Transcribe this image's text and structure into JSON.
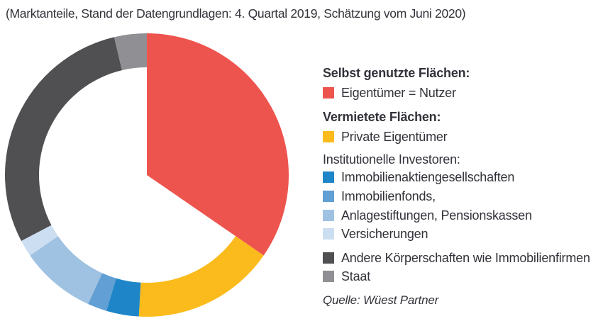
{
  "title": "(Marktanteile, Stand der Datengrundlagen: 4. Quartal 2019, Schätzung vom Juni 2020)",
  "source": "Quelle: Wüest Partner",
  "colors": {
    "owner_red": "#EE544E",
    "private_yellow": "#FBBB1C",
    "stock_blue": "#1E86C8",
    "fund_blue": "#619FD4",
    "pension_blue": "#9FC2E2",
    "insurance_blue": "#CCDEF1",
    "other_darkgray": "#505052",
    "state_gray": "#909094"
  },
  "legend": {
    "groups": [
      {
        "header": "Selbst genutzte Flächen:",
        "items": [
          {
            "label": "Eigentümer = Nutzer",
            "color": "#EE544E"
          }
        ]
      },
      {
        "header": "Vermietete Flächen:",
        "items": [
          {
            "label": "Private Eigentümer",
            "color": "#FBBB1C"
          }
        ]
      },
      {
        "header": "Institutionelle Investoren:",
        "items": [
          {
            "label": "Immobilienaktiengesellschaften",
            "color": "#1E86C8"
          },
          {
            "label": "Immobilienfonds,",
            "color": "#619FD4"
          },
          {
            "label": "Anlagestiftungen, Pensionskassen",
            "color": "#9FC2E2"
          },
          {
            "label": "Versicherungen",
            "color": "#CCDEF1"
          }
        ]
      },
      {
        "header": "",
        "items": [
          {
            "label": "Andere Körperschaften wie Immobilienfirmen",
            "color": "#505052"
          },
          {
            "label": "Staat",
            "color": "#909094"
          }
        ]
      }
    ]
  },
  "chart_data": {
    "type": "pie",
    "title": "(Marktanteile, Stand der Datengrundlagen: 4. Quartal 2019, Schätzung vom Juni 2020)",
    "source": "Quelle: Wüest Partner",
    "legend_position": "right",
    "start_angle_deg": 0,
    "clockwise": true,
    "donut_inner_ratio": 0.76,
    "values_unit": "estimated market share %",
    "segments": [
      {
        "id": "eigentuemer-nutzer",
        "label": "Eigentümer = Nutzer",
        "value_pct": 34.6,
        "color": "#EE544E",
        "full_wedge": true
      },
      {
        "id": "private-eigentuemer",
        "label": "Private Eigentümer",
        "value_pct": 16.3,
        "color": "#FBBB1C",
        "full_wedge": false
      },
      {
        "id": "immobilienaktiengesellschaften",
        "label": "Immobilienaktiengesellschaften",
        "value_pct": 3.7,
        "color": "#1E86C8",
        "full_wedge": false
      },
      {
        "id": "immobilienfonds",
        "label": "Immobilienfonds,",
        "value_pct": 2.2,
        "color": "#619FD4",
        "full_wedge": false
      },
      {
        "id": "anlagestiftungen-pensionskassen",
        "label": "Anlagestiftungen, Pensionskassen",
        "value_pct": 8.6,
        "color": "#9FC2E2",
        "full_wedge": false
      },
      {
        "id": "versicherungen",
        "label": "Versicherungen",
        "value_pct": 1.9,
        "color": "#CCDEF1",
        "full_wedge": false
      },
      {
        "id": "andere-koerperschaften",
        "label": "Andere Körperschaften wie Immobilienfirmen",
        "value_pct": 29.0,
        "color": "#505052",
        "full_wedge": false
      },
      {
        "id": "staat",
        "label": "Staat",
        "value_pct": 3.7,
        "color": "#909094",
        "full_wedge": false
      }
    ]
  }
}
